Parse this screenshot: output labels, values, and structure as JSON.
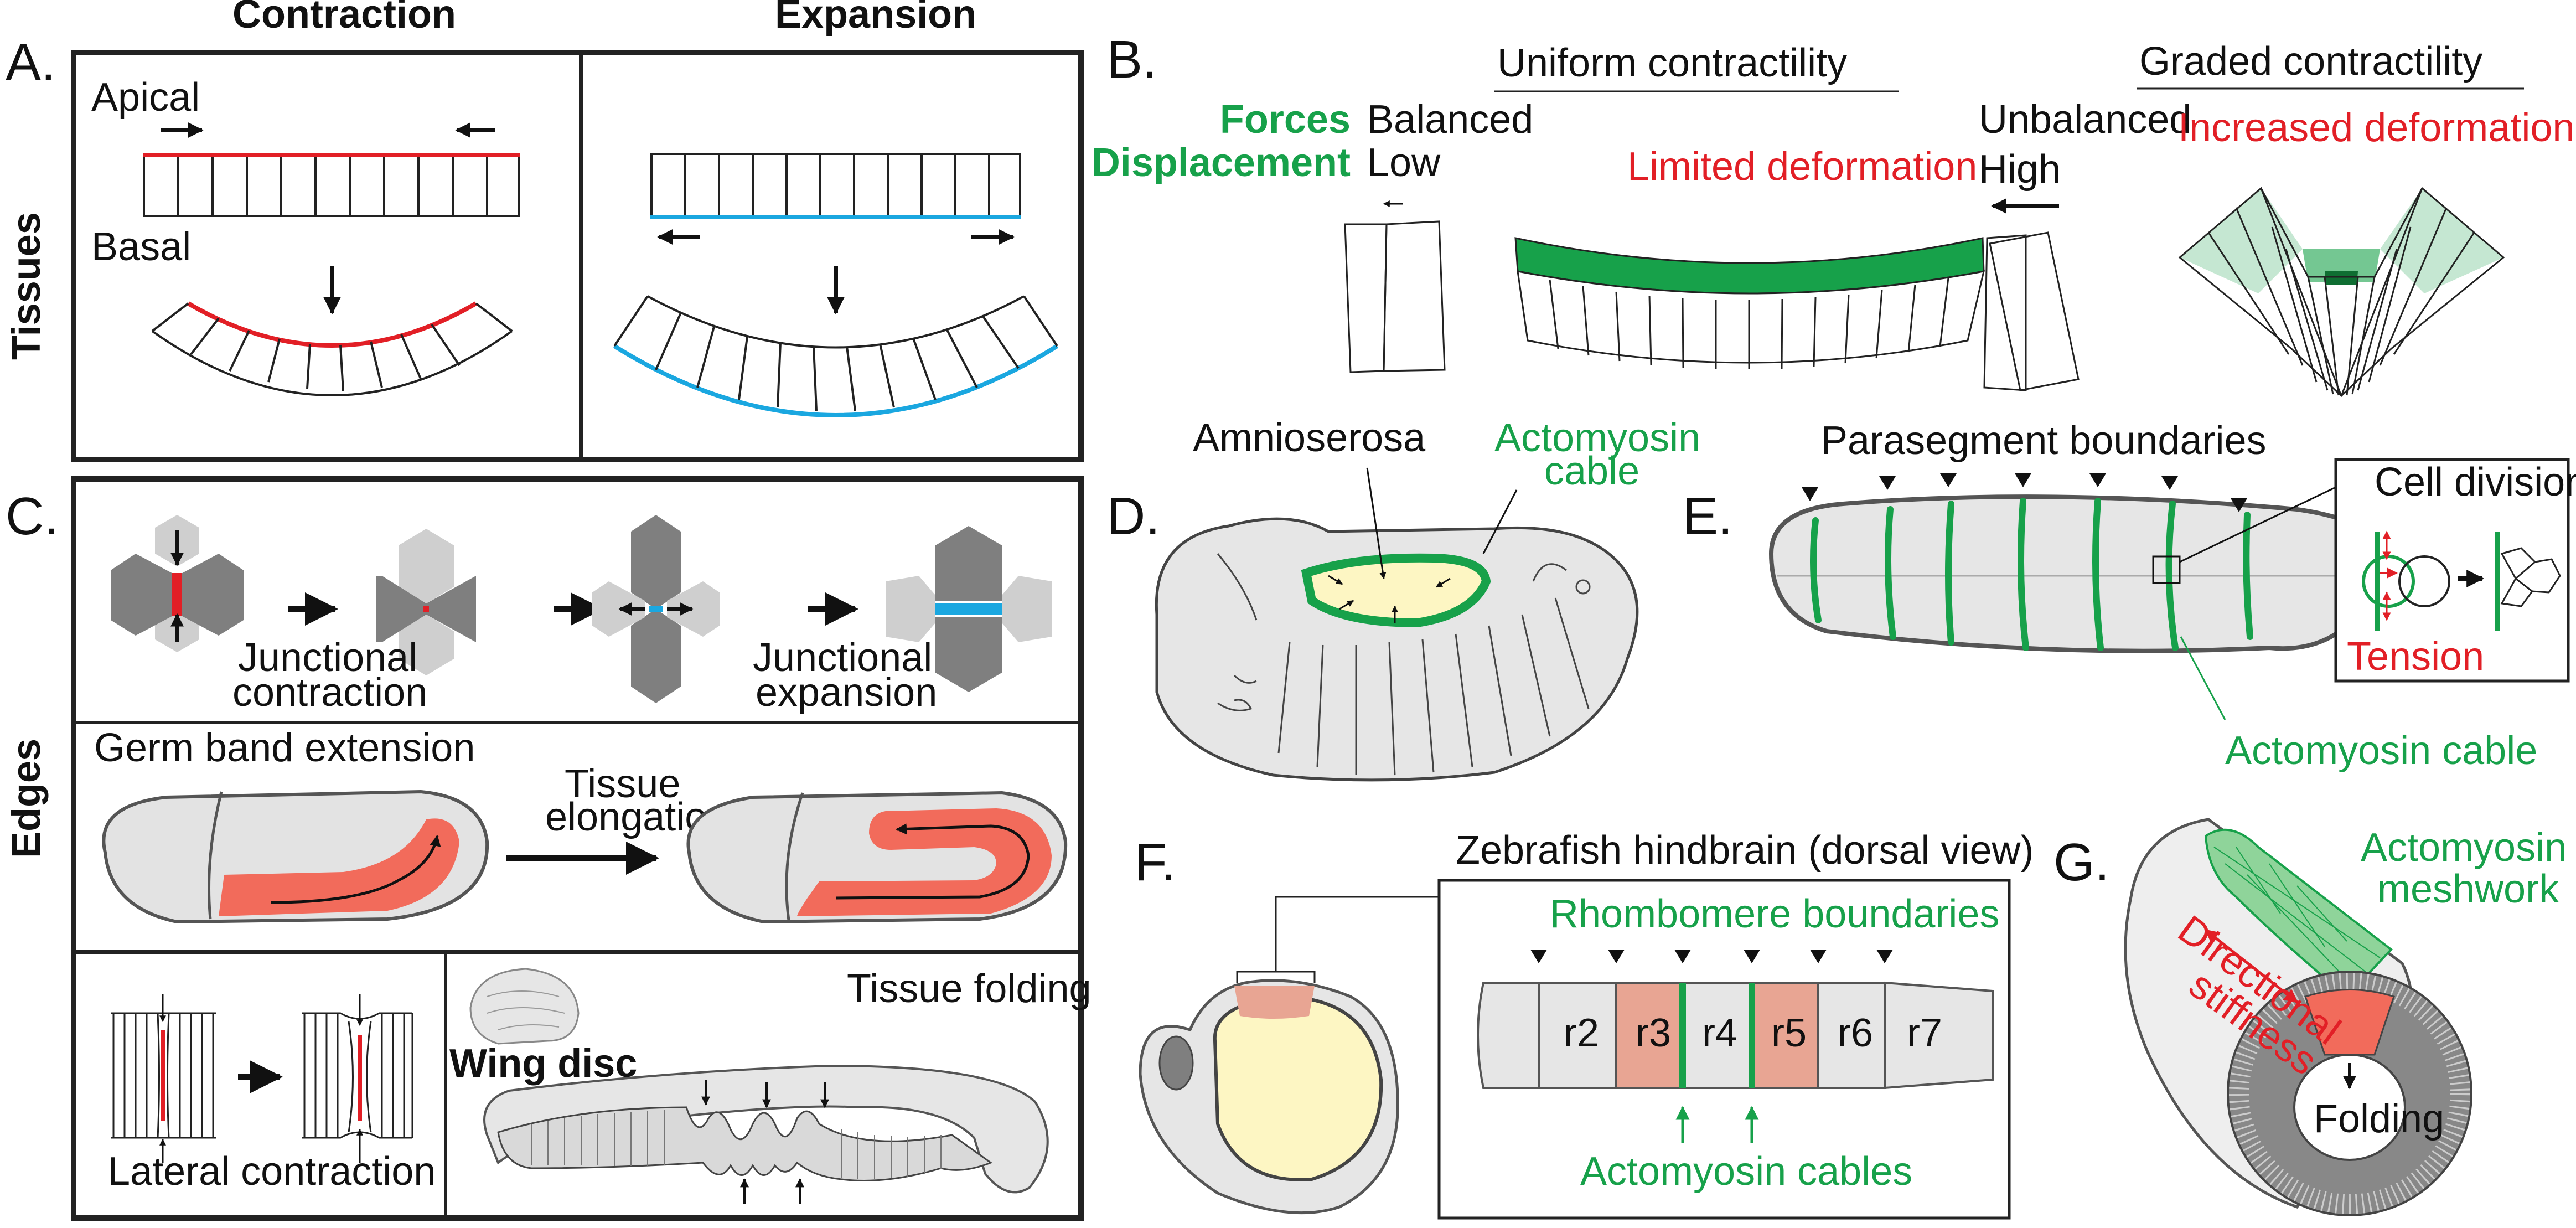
{
  "panel_labels": {
    "a": "A.",
    "b": "B.",
    "c": "C.",
    "d": "D.",
    "e": "E.",
    "f": "F.",
    "g": "G."
  },
  "row_labels": {
    "tissues": "Tissues",
    "edges": "Edges"
  },
  "panel_a": {
    "contraction_header": "Contraction",
    "expansion_header": "Expansion",
    "apical": "Apical",
    "basal": "Basal"
  },
  "panel_b": {
    "uniform_title": "Uniform contractility",
    "graded_title": "Graded contractility",
    "forces": "Forces",
    "displacement": "Displacement",
    "balanced": "Balanced",
    "low": "Low",
    "unbalanced": "Unbalanced",
    "high": "High",
    "limited_deformation": "Limited deformation",
    "increased_deformation": "Increased deformation"
  },
  "panel_c": {
    "junctional_contraction": [
      "Junctional",
      "contraction"
    ],
    "junctional_expansion": [
      "Junctional",
      "expansion"
    ],
    "germ_band_extension": "Germ band extension",
    "tissue_elongation": [
      "Tissue",
      "elongation"
    ],
    "lateral_contraction": "Lateral contraction",
    "tissue_folding": "Tissue folding",
    "wing_disc": "Wing disc"
  },
  "panel_d": {
    "amnioserosa": "Amnioserosa",
    "actomyosin_cable": [
      "Actomyosin",
      "cable"
    ]
  },
  "panel_e": {
    "parasegment_boundaries": "Parasegment boundaries",
    "cell_division": "Cell division:",
    "tension": "Tension",
    "actomyosin_cable": "Actomyosin cable"
  },
  "panel_f": {
    "title": "Zebrafish hindbrain (dorsal view)",
    "rhombomere_boundaries": "Rhombomere boundaries",
    "actomyosin_cables": "Actomyosin cables",
    "rhombomeres": [
      "r2",
      "r3",
      "r4",
      "r5",
      "r6",
      "r7"
    ]
  },
  "panel_g": {
    "actomyosin_meshwork": [
      "Actomyosin",
      "meshwork"
    ],
    "directional_stiffness": [
      "Directional",
      "stiffness"
    ],
    "folding": "Folding"
  },
  "colors": {
    "green": "#17a14a",
    "red": "#e21f26",
    "blue": "#1aa7e0",
    "salmon": "#f26b5b",
    "pale_salmon": "#e8a593",
    "yellow": "#fdf6c3",
    "light_gray": "#e6e6e6",
    "mid_gray": "#c8c8c8",
    "dark_gray": "#808080"
  }
}
